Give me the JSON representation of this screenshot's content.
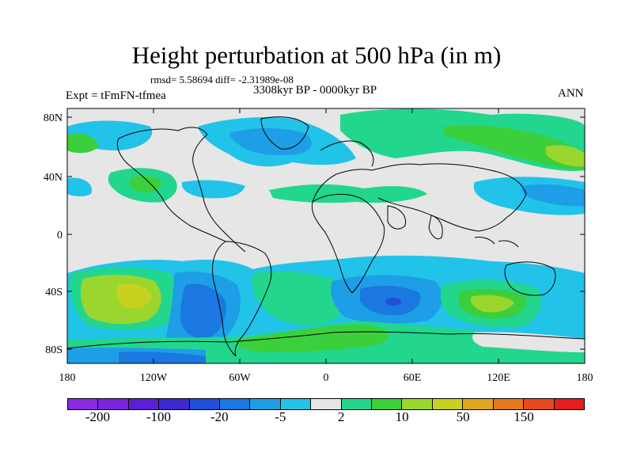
{
  "title": "Height perturbation at 500 hPa (in m)",
  "stats": "rmsd= 5.58694  diff= -2.31989e-08",
  "period": "3308kyr BP - 0000kyr BP",
  "experiment": "Expt = tFmFN-tfmea",
  "season": "ANN",
  "y_ticks": [
    "80N",
    "40N",
    "0",
    "40S",
    "80S"
  ],
  "x_ticks": [
    "180",
    "120W",
    "60W",
    "0",
    "60E",
    "120E",
    "180"
  ],
  "colorbar": {
    "colors": [
      "#8a2be2",
      "#7b26dd",
      "#5c1fd6",
      "#3d2ad2",
      "#1e50d8",
      "#1a78e0",
      "#1d9ee6",
      "#22c3e8",
      "#e6e6e6",
      "#22d68e",
      "#3ccf3c",
      "#9bd62e",
      "#c8d21e",
      "#e0a81e",
      "#e6781e",
      "#e64a1e",
      "#e61e1e"
    ],
    "labels": [
      {
        "text": "-200",
        "slot": 1
      },
      {
        "text": "-100",
        "slot": 3
      },
      {
        "text": "-20",
        "slot": 5
      },
      {
        "text": "-5",
        "slot": 7
      },
      {
        "text": "2",
        "slot": 9
      },
      {
        "text": "10",
        "slot": 11
      },
      {
        "text": "50",
        "slot": 13
      },
      {
        "text": "150",
        "slot": 15
      }
    ]
  }
}
